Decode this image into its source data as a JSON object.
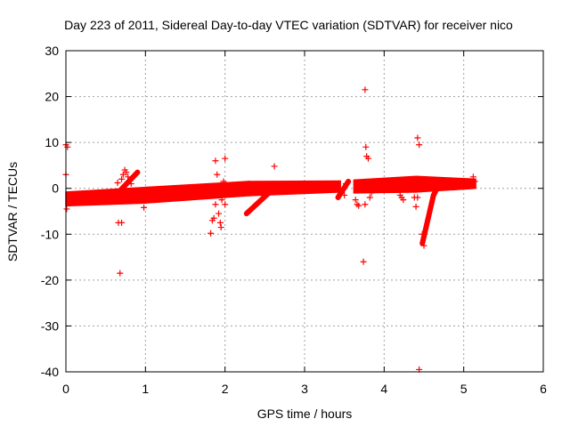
{
  "chart_data": {
    "type": "scatter",
    "title": "Day 223 of 2011, Sidereal Day-to-day VTEC variation (SDTVAR) for receiver nico",
    "xlabel": "GPS time / hours",
    "ylabel": "SDTVAR / TECUs",
    "xlim": [
      0,
      6
    ],
    "ylim": [
      -40,
      30
    ],
    "x_ticks": [
      "0",
      "1",
      "2",
      "3",
      "4",
      "5",
      "6"
    ],
    "y_ticks": [
      "30",
      "20",
      "10",
      "0",
      "-10",
      "-20",
      "-30",
      "-40"
    ],
    "grid": true,
    "legend": "none",
    "series": [
      {
        "color": "#ff0000",
        "marker": "plus",
        "bands": [
          {
            "x_start": 0.0,
            "x_end": 1.0,
            "y_low_start": -3.8,
            "y_low_end": -3.2,
            "y_high_start": -0.8,
            "y_high_end": 0.2
          },
          {
            "x_start": 1.0,
            "x_end": 2.3,
            "y_low_start": -3.2,
            "y_low_end": -1.6,
            "y_high_start": 0.2,
            "y_high_end": 1.5
          },
          {
            "x_start": 2.3,
            "x_end": 3.45,
            "y_low_start": -1.6,
            "y_low_end": -0.8,
            "y_high_start": 1.5,
            "y_high_end": 1.6
          },
          {
            "x_start": 3.62,
            "x_end": 4.4,
            "y_low_start": -1.0,
            "y_low_end": -0.8,
            "y_high_start": 1.8,
            "y_high_end": 2.6
          },
          {
            "x_start": 4.4,
            "x_end": 5.15,
            "y_low_start": -0.8,
            "y_low_end": 0.0,
            "y_high_start": 2.6,
            "y_high_end": 2.0
          }
        ],
        "points": [
          {
            "x": 0.0,
            "y": 9.5
          },
          {
            "x": 0.02,
            "y": 9.0
          },
          {
            "x": 0.0,
            "y": 3.0
          },
          {
            "x": 0.01,
            "y": -4.5
          },
          {
            "x": 0.65,
            "y": 1.2
          },
          {
            "x": 0.7,
            "y": 2.0
          },
          {
            "x": 0.72,
            "y": 3.0
          },
          {
            "x": 0.74,
            "y": 4.0
          },
          {
            "x": 0.76,
            "y": 3.5
          },
          {
            "x": 0.78,
            "y": 2.5
          },
          {
            "x": 0.8,
            "y": 1.8
          },
          {
            "x": 0.82,
            "y": 1.0
          },
          {
            "x": 0.66,
            "y": -7.5
          },
          {
            "x": 0.7,
            "y": -7.5
          },
          {
            "x": 0.68,
            "y": -18.5
          },
          {
            "x": 0.98,
            "y": -4.2
          },
          {
            "x": 1.82,
            "y": -9.8
          },
          {
            "x": 1.84,
            "y": -7.0
          },
          {
            "x": 1.86,
            "y": -6.5
          },
          {
            "x": 1.88,
            "y": -3.5
          },
          {
            "x": 1.88,
            "y": 6.0
          },
          {
            "x": 1.9,
            "y": 3.0
          },
          {
            "x": 1.92,
            "y": -5.5
          },
          {
            "x": 1.94,
            "y": -7.5
          },
          {
            "x": 1.95,
            "y": -8.5
          },
          {
            "x": 1.96,
            "y": -2.5
          },
          {
            "x": 1.98,
            "y": 1.5
          },
          {
            "x": 2.0,
            "y": 6.5
          },
          {
            "x": 2.0,
            "y": -3.5
          },
          {
            "x": 2.62,
            "y": 4.8
          },
          {
            "x": 3.5,
            "y": -1.5
          },
          {
            "x": 3.52,
            "y": 1.0
          },
          {
            "x": 3.64,
            "y": -2.5
          },
          {
            "x": 3.66,
            "y": -3.5
          },
          {
            "x": 3.68,
            "y": -3.8
          },
          {
            "x": 3.74,
            "y": -16.0
          },
          {
            "x": 3.76,
            "y": 21.5
          },
          {
            "x": 3.76,
            "y": -3.5
          },
          {
            "x": 3.77,
            "y": 9.0
          },
          {
            "x": 3.78,
            "y": 7.0
          },
          {
            "x": 3.8,
            "y": 6.5
          },
          {
            "x": 3.82,
            "y": -2.0
          },
          {
            "x": 3.84,
            "y": -1.0
          },
          {
            "x": 4.2,
            "y": -1.5
          },
          {
            "x": 4.22,
            "y": -2.0
          },
          {
            "x": 4.24,
            "y": -2.5
          },
          {
            "x": 4.38,
            "y": -2.0
          },
          {
            "x": 4.4,
            "y": -4.0
          },
          {
            "x": 4.42,
            "y": 11.0
          },
          {
            "x": 4.44,
            "y": 9.5
          },
          {
            "x": 4.44,
            "y": -39.5
          },
          {
            "x": 4.42,
            "y": -2.0
          },
          {
            "x": 4.48,
            "y": -10.0
          },
          {
            "x": 4.5,
            "y": -12.5
          },
          {
            "x": 5.12,
            "y": 2.5
          },
          {
            "x": 5.14,
            "y": 1.5
          }
        ],
        "tracks": [
          {
            "x_start": 0.68,
            "x_end": 0.9,
            "y_start": -0.5,
            "y_end": 3.5
          },
          {
            "x_start": 2.27,
            "x_end": 2.55,
            "y_start": -5.5,
            "y_end": -1.0
          },
          {
            "x_start": 4.48,
            "x_end": 4.62,
            "y_start": -12.0,
            "y_end": -1.5
          },
          {
            "x_start": 4.62,
            "x_end": 4.68,
            "y_start": -1.5,
            "y_end": 0.5
          },
          {
            "x_start": 3.42,
            "x_end": 3.55,
            "y_start": -2.0,
            "y_end": 1.5
          }
        ]
      }
    ]
  }
}
